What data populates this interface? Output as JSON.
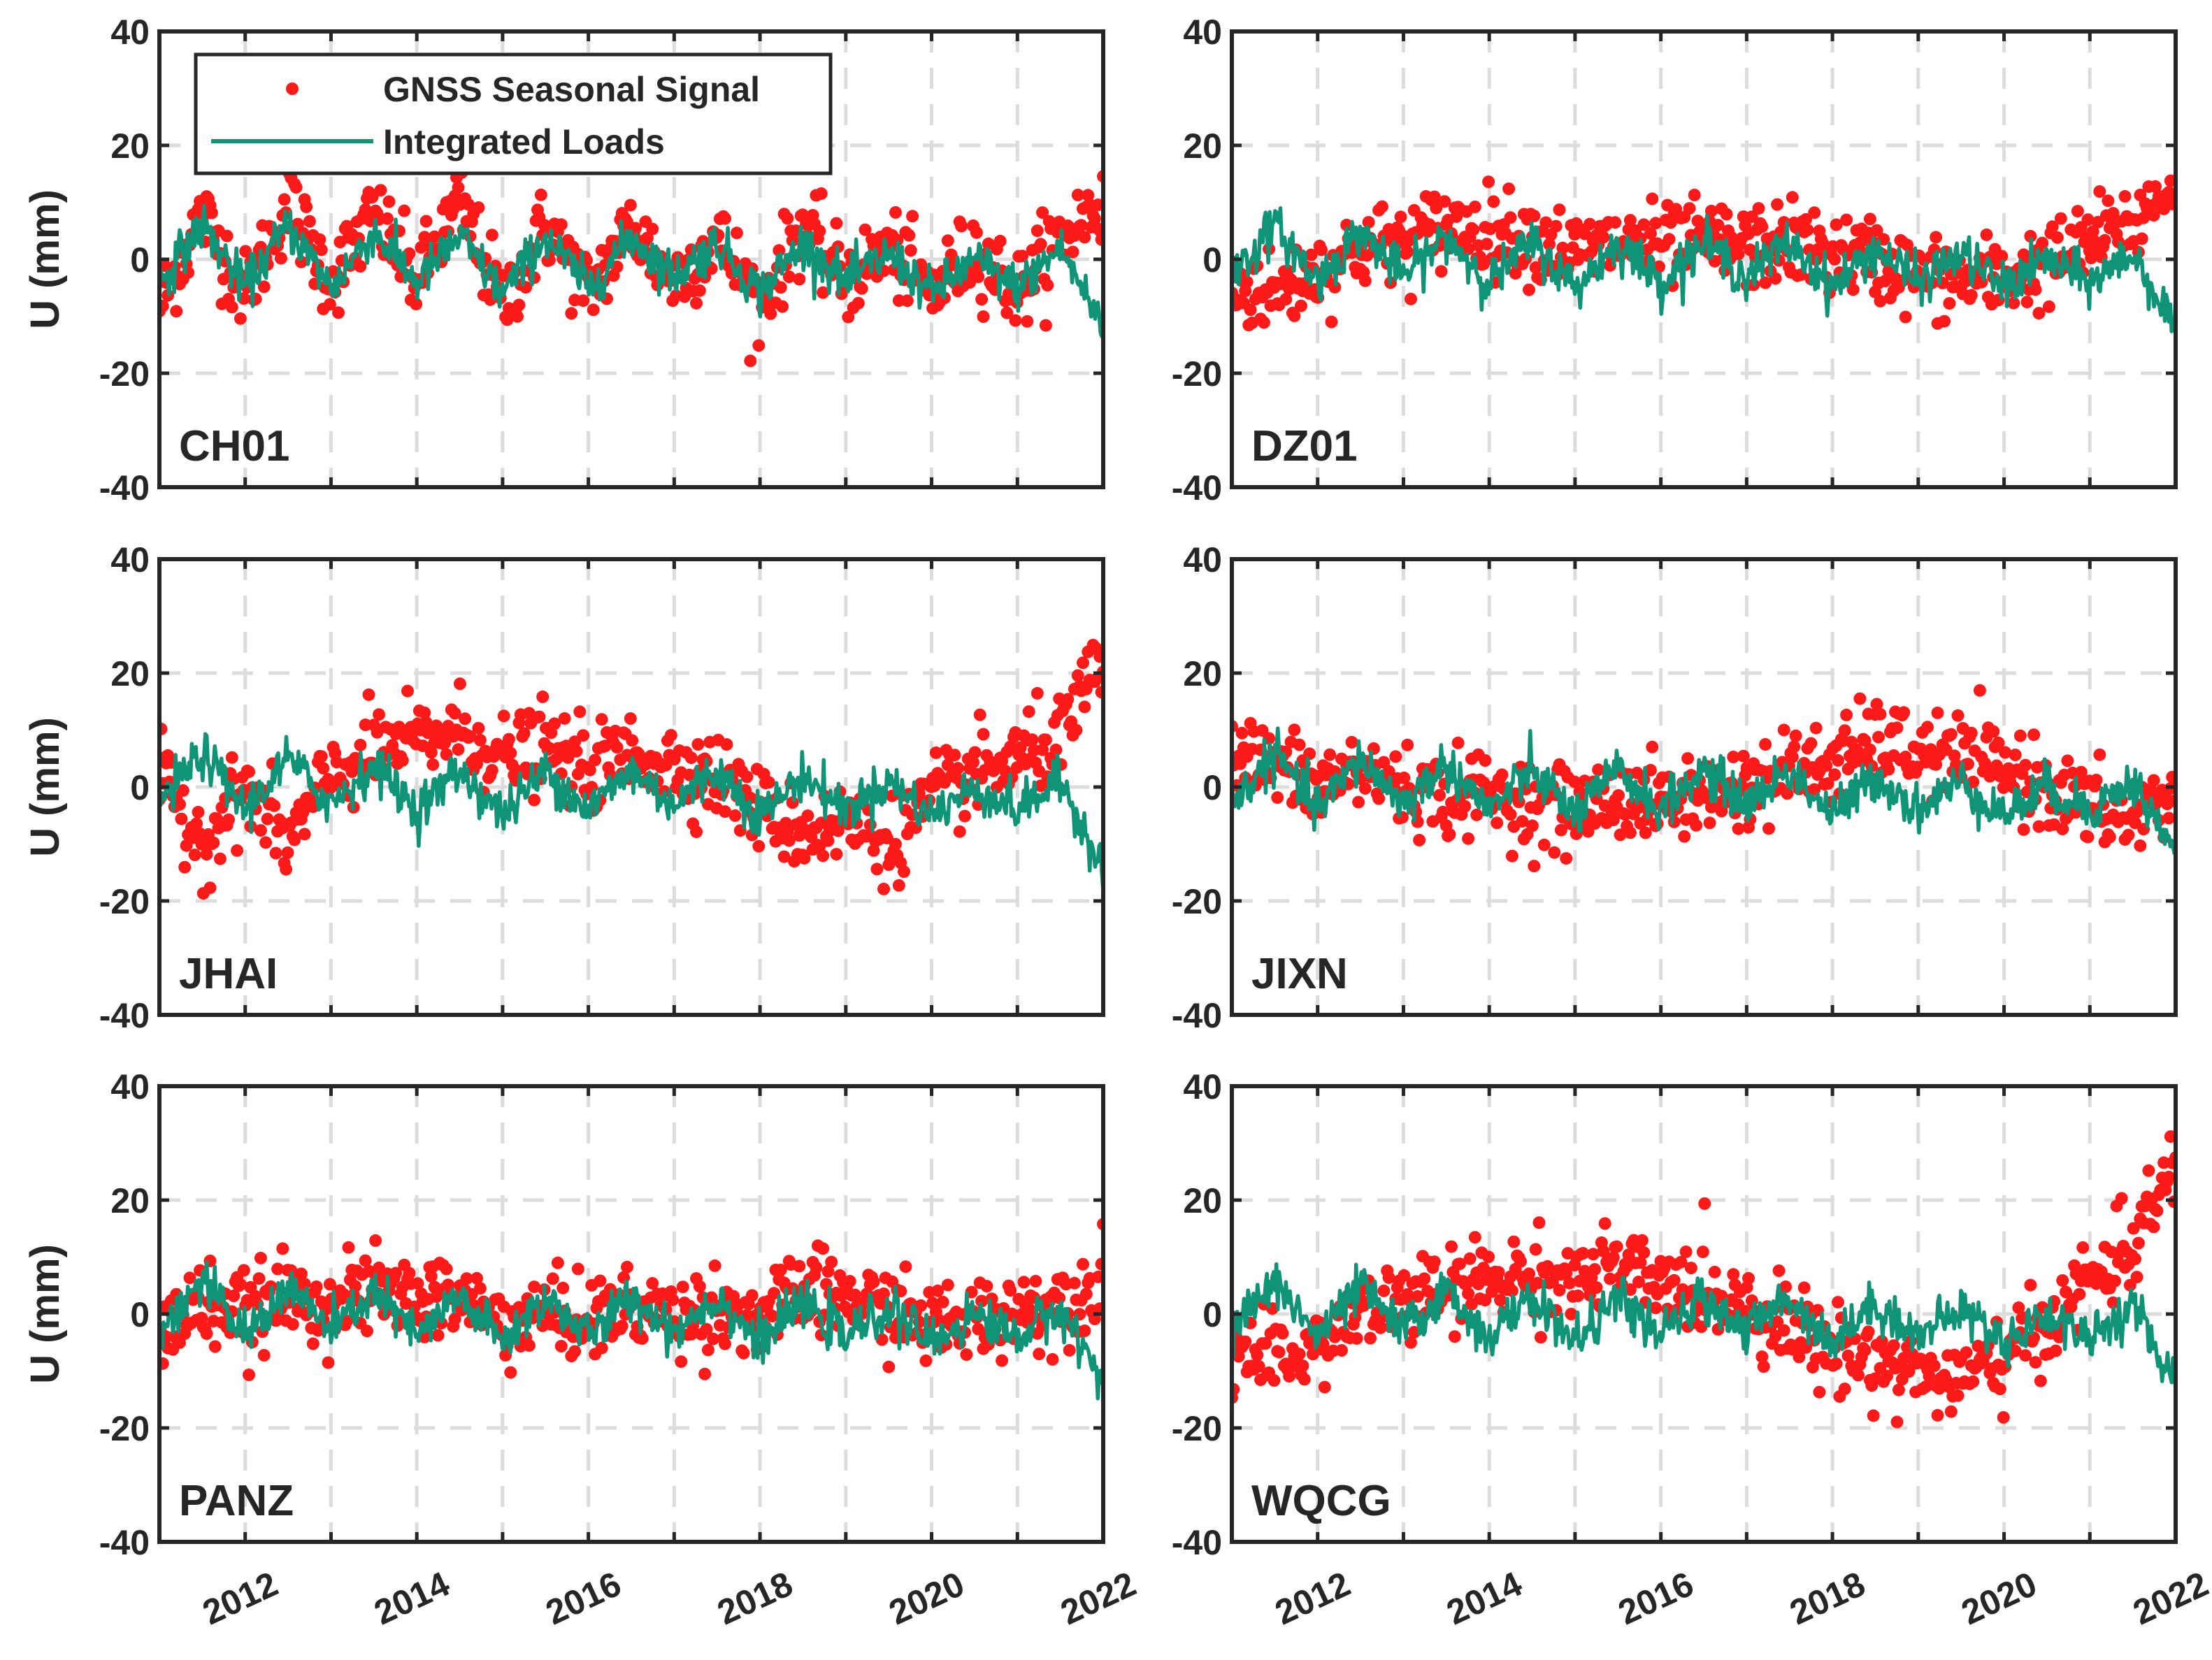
{
  "figure": {
    "legend": {
      "entries": [
        {
          "label": "GNSS Seasonal Signal",
          "marker": "dot",
          "color": "#ff1a1a"
        },
        {
          "label": "Integrated Loads",
          "marker": "line",
          "color": "#0f9478"
        }
      ]
    },
    "colors": {
      "gnss": "#ff1a1a",
      "loads": "#0f9478",
      "axis": "#262626",
      "grid": "#dcdcdc"
    }
  },
  "chart_data": [
    {
      "type": "scatter",
      "station": "CH01",
      "ylabel": "U (mm)",
      "xlim": [
        2011,
        2022
      ],
      "ylim": [
        -40,
        40
      ],
      "xticks": [
        "2012",
        "2014",
        "2016",
        "2018",
        "2020",
        "2022"
      ],
      "yticks": [
        "40",
        "20",
        "0",
        "-20",
        "-40"
      ],
      "grid": true,
      "legend_position": "top-left",
      "series": [
        {
          "name": "GNSS Seasonal Signal",
          "style": "dots",
          "x": [
            2011.0,
            2011.5,
            2012.0,
            2012.5,
            2013.0,
            2013.5,
            2014.0,
            2014.5,
            2015.0,
            2015.5,
            2016.0,
            2016.5,
            2017.0,
            2017.5,
            2018.0,
            2018.5,
            2019.0,
            2019.5,
            2020.0,
            2020.5,
            2021.0,
            2021.5,
            2022.0
          ],
          "y": [
            -8,
            8,
            -6,
            10,
            -4,
            8,
            -4,
            10,
            -8,
            6,
            -6,
            6,
            -4,
            4,
            -8,
            6,
            -4,
            2,
            -6,
            2,
            -6,
            4,
            10
          ]
        },
        {
          "name": "Integrated Loads",
          "style": "line",
          "x": [
            2011.0,
            2011.5,
            2012.0,
            2012.5,
            2013.0,
            2013.5,
            2014.0,
            2014.5,
            2015.0,
            2015.5,
            2016.0,
            2016.5,
            2017.0,
            2017.5,
            2018.0,
            2018.5,
            2019.0,
            2019.5,
            2020.0,
            2020.5,
            2021.0,
            2021.5,
            2022.0
          ],
          "y": [
            -4,
            6,
            -5,
            6,
            -5,
            5,
            -4,
            4,
            -6,
            4,
            -5,
            4,
            -3,
            3,
            -6,
            3,
            -4,
            1,
            -6,
            0,
            -5,
            2,
            -12
          ]
        }
      ]
    },
    {
      "type": "scatter",
      "station": "DZ01",
      "ylabel": "",
      "xlim": [
        2011,
        2022
      ],
      "ylim": [
        -40,
        40
      ],
      "xticks": [
        "2012",
        "2014",
        "2016",
        "2018",
        "2020",
        "2022"
      ],
      "yticks": [
        "40",
        "20",
        "0",
        "-20",
        "-40"
      ],
      "grid": true,
      "series": [
        {
          "name": "GNSS Seasonal Signal",
          "style": "dots",
          "x": [
            2011.0,
            2011.5,
            2012.0,
            2012.5,
            2013.0,
            2013.5,
            2014.0,
            2014.5,
            2015.0,
            2015.5,
            2016.0,
            2016.5,
            2017.0,
            2017.5,
            2018.0,
            2018.5,
            2019.0,
            2019.5,
            2020.0,
            2020.5,
            2021.0,
            2021.5,
            2022.0
          ],
          "y": [
            -5,
            -6,
            -2,
            2,
            3,
            6,
            5,
            4,
            1,
            3,
            2,
            3,
            2,
            3,
            1,
            0,
            -3,
            -4,
            -3,
            -1,
            3,
            6,
            14
          ]
        },
        {
          "name": "Integrated Loads",
          "style": "line",
          "x": [
            2011.0,
            2011.5,
            2012.0,
            2012.5,
            2013.0,
            2013.5,
            2014.0,
            2014.5,
            2015.0,
            2015.5,
            2016.0,
            2016.5,
            2017.0,
            2017.5,
            2018.0,
            2018.5,
            2019.0,
            2019.5,
            2020.0,
            2020.5,
            2021.0,
            2021.5,
            2022.0
          ],
          "y": [
            -3,
            6,
            -4,
            5,
            -3,
            4,
            -4,
            3,
            -5,
            3,
            -4,
            3,
            -3,
            3,
            -5,
            2,
            -4,
            1,
            -5,
            0,
            -4,
            1,
            -12
          ]
        }
      ]
    },
    {
      "type": "scatter",
      "station": "JHAI",
      "ylabel": "U (mm)",
      "xlim": [
        2011,
        2022
      ],
      "ylim": [
        -40,
        40
      ],
      "xticks": [
        "2012",
        "2014",
        "2016",
        "2018",
        "2020",
        "2022"
      ],
      "yticks": [
        "40",
        "20",
        "0",
        "-20",
        "-40"
      ],
      "grid": true,
      "series": [
        {
          "name": "GNSS Seasonal Signal",
          "style": "dots",
          "x": [
            2011.0,
            2011.5,
            2012.0,
            2012.5,
            2013.0,
            2013.5,
            2014.0,
            2014.5,
            2015.0,
            2015.5,
            2016.0,
            2016.5,
            2017.0,
            2017.5,
            2018.0,
            2018.5,
            2019.0,
            2019.5,
            2020.0,
            2020.5,
            2021.0,
            2021.5,
            2022.0
          ],
          "y": [
            2,
            -10,
            0,
            -10,
            2,
            6,
            8,
            10,
            5,
            7,
            3,
            6,
            4,
            2,
            -4,
            -8,
            -6,
            -10,
            -2,
            2,
            5,
            8,
            22
          ]
        },
        {
          "name": "Integrated Loads",
          "style": "line",
          "x": [
            2011.0,
            2011.5,
            2012.0,
            2012.5,
            2013.0,
            2013.5,
            2014.0,
            2014.5,
            2015.0,
            2015.5,
            2016.0,
            2016.5,
            2017.0,
            2017.5,
            2018.0,
            2018.5,
            2019.0,
            2019.5,
            2020.0,
            2020.5,
            2021.0,
            2021.5,
            2022.0
          ],
          "y": [
            -3,
            6,
            -4,
            5,
            -3,
            4,
            -4,
            3,
            -5,
            3,
            -4,
            3,
            -3,
            3,
            -5,
            2,
            -4,
            1,
            -5,
            0,
            -4,
            1,
            -14
          ]
        }
      ]
    },
    {
      "type": "scatter",
      "station": "JIXN",
      "ylabel": "",
      "xlim": [
        2011,
        2022
      ],
      "ylim": [
        -40,
        40
      ],
      "xticks": [
        "2012",
        "2014",
        "2016",
        "2018",
        "2020",
        "2022"
      ],
      "yticks": [
        "40",
        "20",
        "0",
        "-20",
        "-40"
      ],
      "grid": true,
      "series": [
        {
          "name": "GNSS Seasonal Signal",
          "style": "dots",
          "x": [
            2011.0,
            2011.5,
            2012.0,
            2012.5,
            2013.0,
            2013.5,
            2014.0,
            2014.5,
            2015.0,
            2015.5,
            2016.0,
            2016.5,
            2017.0,
            2017.5,
            2018.0,
            2018.5,
            2019.0,
            2019.5,
            2020.0,
            2020.5,
            2021.0,
            2021.5,
            2022.0
          ],
          "y": [
            5,
            4,
            0,
            3,
            0,
            -2,
            -1,
            -3,
            -4,
            -2,
            -3,
            -1,
            0,
            3,
            4,
            8,
            6,
            5,
            3,
            0,
            -4,
            -6,
            0
          ]
        },
        {
          "name": "Integrated Loads",
          "style": "line",
          "x": [
            2011.0,
            2011.5,
            2012.0,
            2012.5,
            2013.0,
            2013.5,
            2014.0,
            2014.5,
            2015.0,
            2015.5,
            2016.0,
            2016.5,
            2017.0,
            2017.5,
            2018.0,
            2018.5,
            2019.0,
            2019.5,
            2020.0,
            2020.5,
            2021.0,
            2021.5,
            2022.0
          ],
          "y": [
            -3,
            6,
            -4,
            5,
            -3,
            4,
            -4,
            3,
            -5,
            3,
            -4,
            3,
            -3,
            3,
            -5,
            2,
            -4,
            1,
            -5,
            0,
            -4,
            1,
            -12
          ]
        }
      ]
    },
    {
      "type": "scatter",
      "station": "PANZ",
      "ylabel": "U (mm)",
      "xlim": [
        2011,
        2022
      ],
      "ylim": [
        -40,
        40
      ],
      "xticks": [
        "2012",
        "2014",
        "2016",
        "2018",
        "2020",
        "2022"
      ],
      "yticks": [
        "40",
        "20",
        "0",
        "-20",
        "-40"
      ],
      "grid": true,
      "series": [
        {
          "name": "GNSS Seasonal Signal",
          "style": "dots",
          "x": [
            2011.0,
            2011.5,
            2012.0,
            2012.5,
            2013.0,
            2013.5,
            2014.0,
            2014.5,
            2015.0,
            2015.5,
            2016.0,
            2016.5,
            2017.0,
            2017.5,
            2018.0,
            2018.5,
            2019.0,
            2019.5,
            2020.0,
            2020.5,
            2021.0,
            2021.5,
            2022.0
          ],
          "y": [
            -4,
            2,
            0,
            3,
            2,
            4,
            3,
            3,
            -2,
            0,
            -1,
            1,
            0,
            1,
            -1,
            4,
            3,
            1,
            -2,
            -1,
            1,
            2,
            6
          ]
        },
        {
          "name": "Integrated Loads",
          "style": "line",
          "x": [
            2011.0,
            2011.5,
            2012.0,
            2012.5,
            2013.0,
            2013.5,
            2014.0,
            2014.5,
            2015.0,
            2015.5,
            2016.0,
            2016.5,
            2017.0,
            2017.5,
            2018.0,
            2018.5,
            2019.0,
            2019.5,
            2020.0,
            2020.5,
            2021.0,
            2021.5,
            2022.0
          ],
          "y": [
            -3,
            6,
            -4,
            5,
            -3,
            4,
            -4,
            3,
            -5,
            3,
            -4,
            3,
            -3,
            3,
            -5,
            2,
            -4,
            1,
            -5,
            0,
            -4,
            1,
            -12
          ]
        }
      ]
    },
    {
      "type": "scatter",
      "station": "WQCG",
      "ylabel": "",
      "xlim": [
        2011,
        2022
      ],
      "ylim": [
        -40,
        40
      ],
      "xticks": [
        "2012",
        "2014",
        "2016",
        "2018",
        "2020",
        "2022"
      ],
      "yticks": [
        "40",
        "20",
        "0",
        "-20",
        "-40"
      ],
      "grid": true,
      "series": [
        {
          "name": "GNSS Seasonal Signal",
          "style": "dots",
          "x": [
            2011.0,
            2011.5,
            2012.0,
            2012.5,
            2013.0,
            2013.5,
            2014.0,
            2014.5,
            2015.0,
            2015.5,
            2016.0,
            2016.5,
            2017.0,
            2017.5,
            2018.0,
            2018.5,
            2019.0,
            2019.5,
            2020.0,
            2020.5,
            2021.0,
            2021.5,
            2022.0
          ],
          "y": [
            -6,
            -9,
            -5,
            0,
            2,
            4,
            6,
            7,
            6,
            8,
            5,
            4,
            2,
            -2,
            -6,
            -8,
            -10,
            -12,
            -8,
            -2,
            6,
            12,
            26
          ]
        },
        {
          "name": "Integrated Loads",
          "style": "line",
          "x": [
            2011.0,
            2011.5,
            2012.0,
            2012.5,
            2013.0,
            2013.5,
            2014.0,
            2014.5,
            2015.0,
            2015.5,
            2016.0,
            2016.5,
            2017.0,
            2017.5,
            2018.0,
            2018.5,
            2019.0,
            2019.5,
            2020.0,
            2020.5,
            2021.0,
            2021.5,
            2022.0
          ],
          "y": [
            -3,
            6,
            -4,
            5,
            -3,
            4,
            -4,
            3,
            -5,
            3,
            -4,
            3,
            -3,
            3,
            -5,
            2,
            -4,
            1,
            -5,
            0,
            -4,
            1,
            -12
          ]
        }
      ]
    }
  ]
}
